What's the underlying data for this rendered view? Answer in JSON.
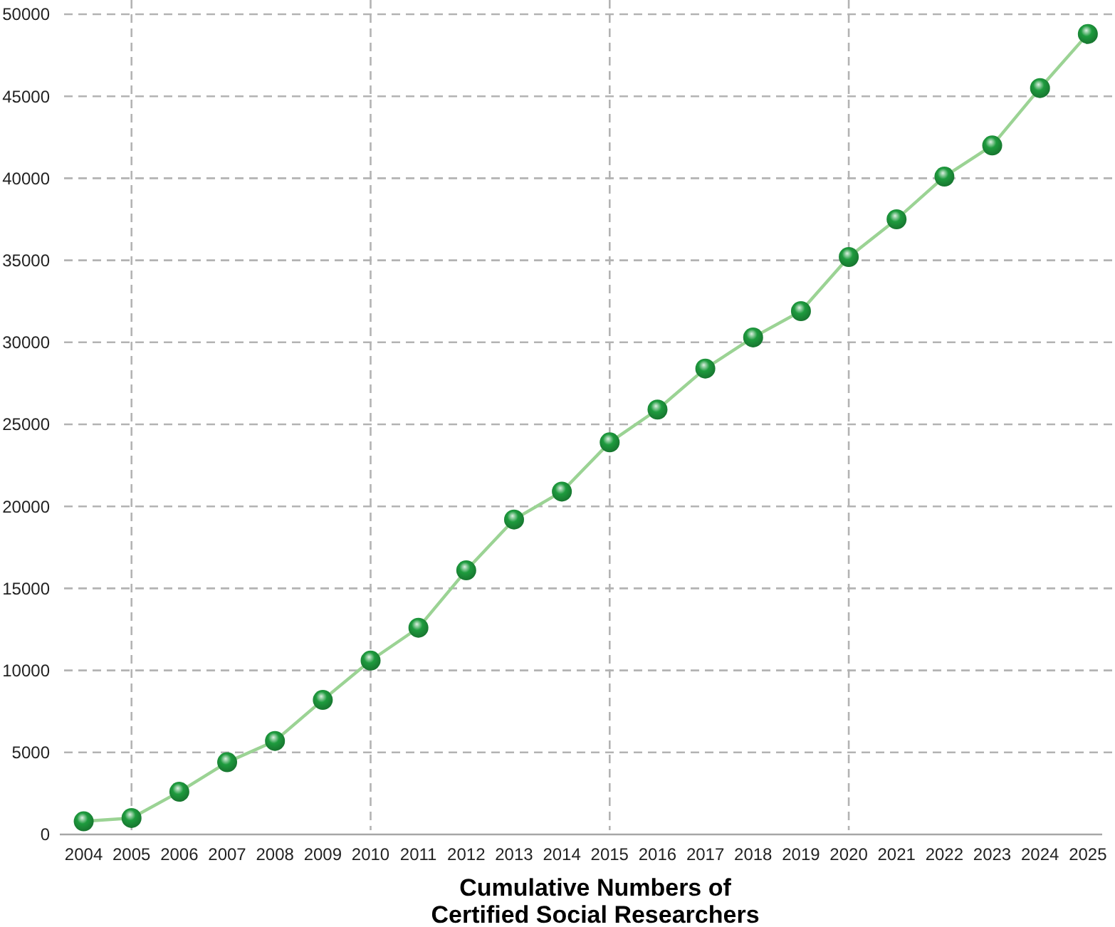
{
  "chart_data": {
    "type": "line",
    "xlabel": "Cumulative Numbers of\nCertified Social Researchers",
    "x": [
      2004,
      2005,
      2006,
      2007,
      2008,
      2009,
      2010,
      2011,
      2012,
      2013,
      2014,
      2015,
      2016,
      2017,
      2018,
      2019,
      2020,
      2021,
      2022,
      2023,
      2024,
      2025
    ],
    "series": [
      {
        "color": "#1e9b3e",
        "values": [
          800,
          1000,
          2600,
          4400,
          5700,
          8200,
          10600,
          12600,
          16100,
          19200,
          20900,
          23900,
          25900,
          28400,
          30300,
          31900,
          35200,
          37500,
          40100,
          42000,
          45500,
          48800
        ]
      }
    ],
    "xlim": [
      2003.5,
      2025.3
    ],
    "xticks": [
      2004,
      2005,
      2006,
      2007,
      2008,
      2009,
      2010,
      2011,
      2012,
      2013,
      2014,
      2015,
      2016,
      2017,
      2018,
      2019,
      2020,
      2021,
      2022,
      2023,
      2024,
      2025
    ],
    "ylim": [
      0,
      50000
    ],
    "yticks": [
      0,
      5000,
      10000,
      15000,
      20000,
      25000,
      30000,
      35000,
      40000,
      45000,
      50000
    ],
    "grid": "y",
    "ref_lines": [
      {
        "axis": "x",
        "value": 2005,
        "color": "#b3b3b3",
        "line_style": "dashed"
      },
      {
        "axis": "x",
        "value": 2010,
        "color": "#b3b3b3",
        "line_style": "dashed"
      },
      {
        "axis": "x",
        "value": 2015,
        "color": "#b3b3b3",
        "line_style": "dashed"
      },
      {
        "axis": "x",
        "value": 2020,
        "color": "#b3b3b3",
        "line_style": "dashed"
      }
    ],
    "marker": "circle",
    "line_style": "solid"
  }
}
